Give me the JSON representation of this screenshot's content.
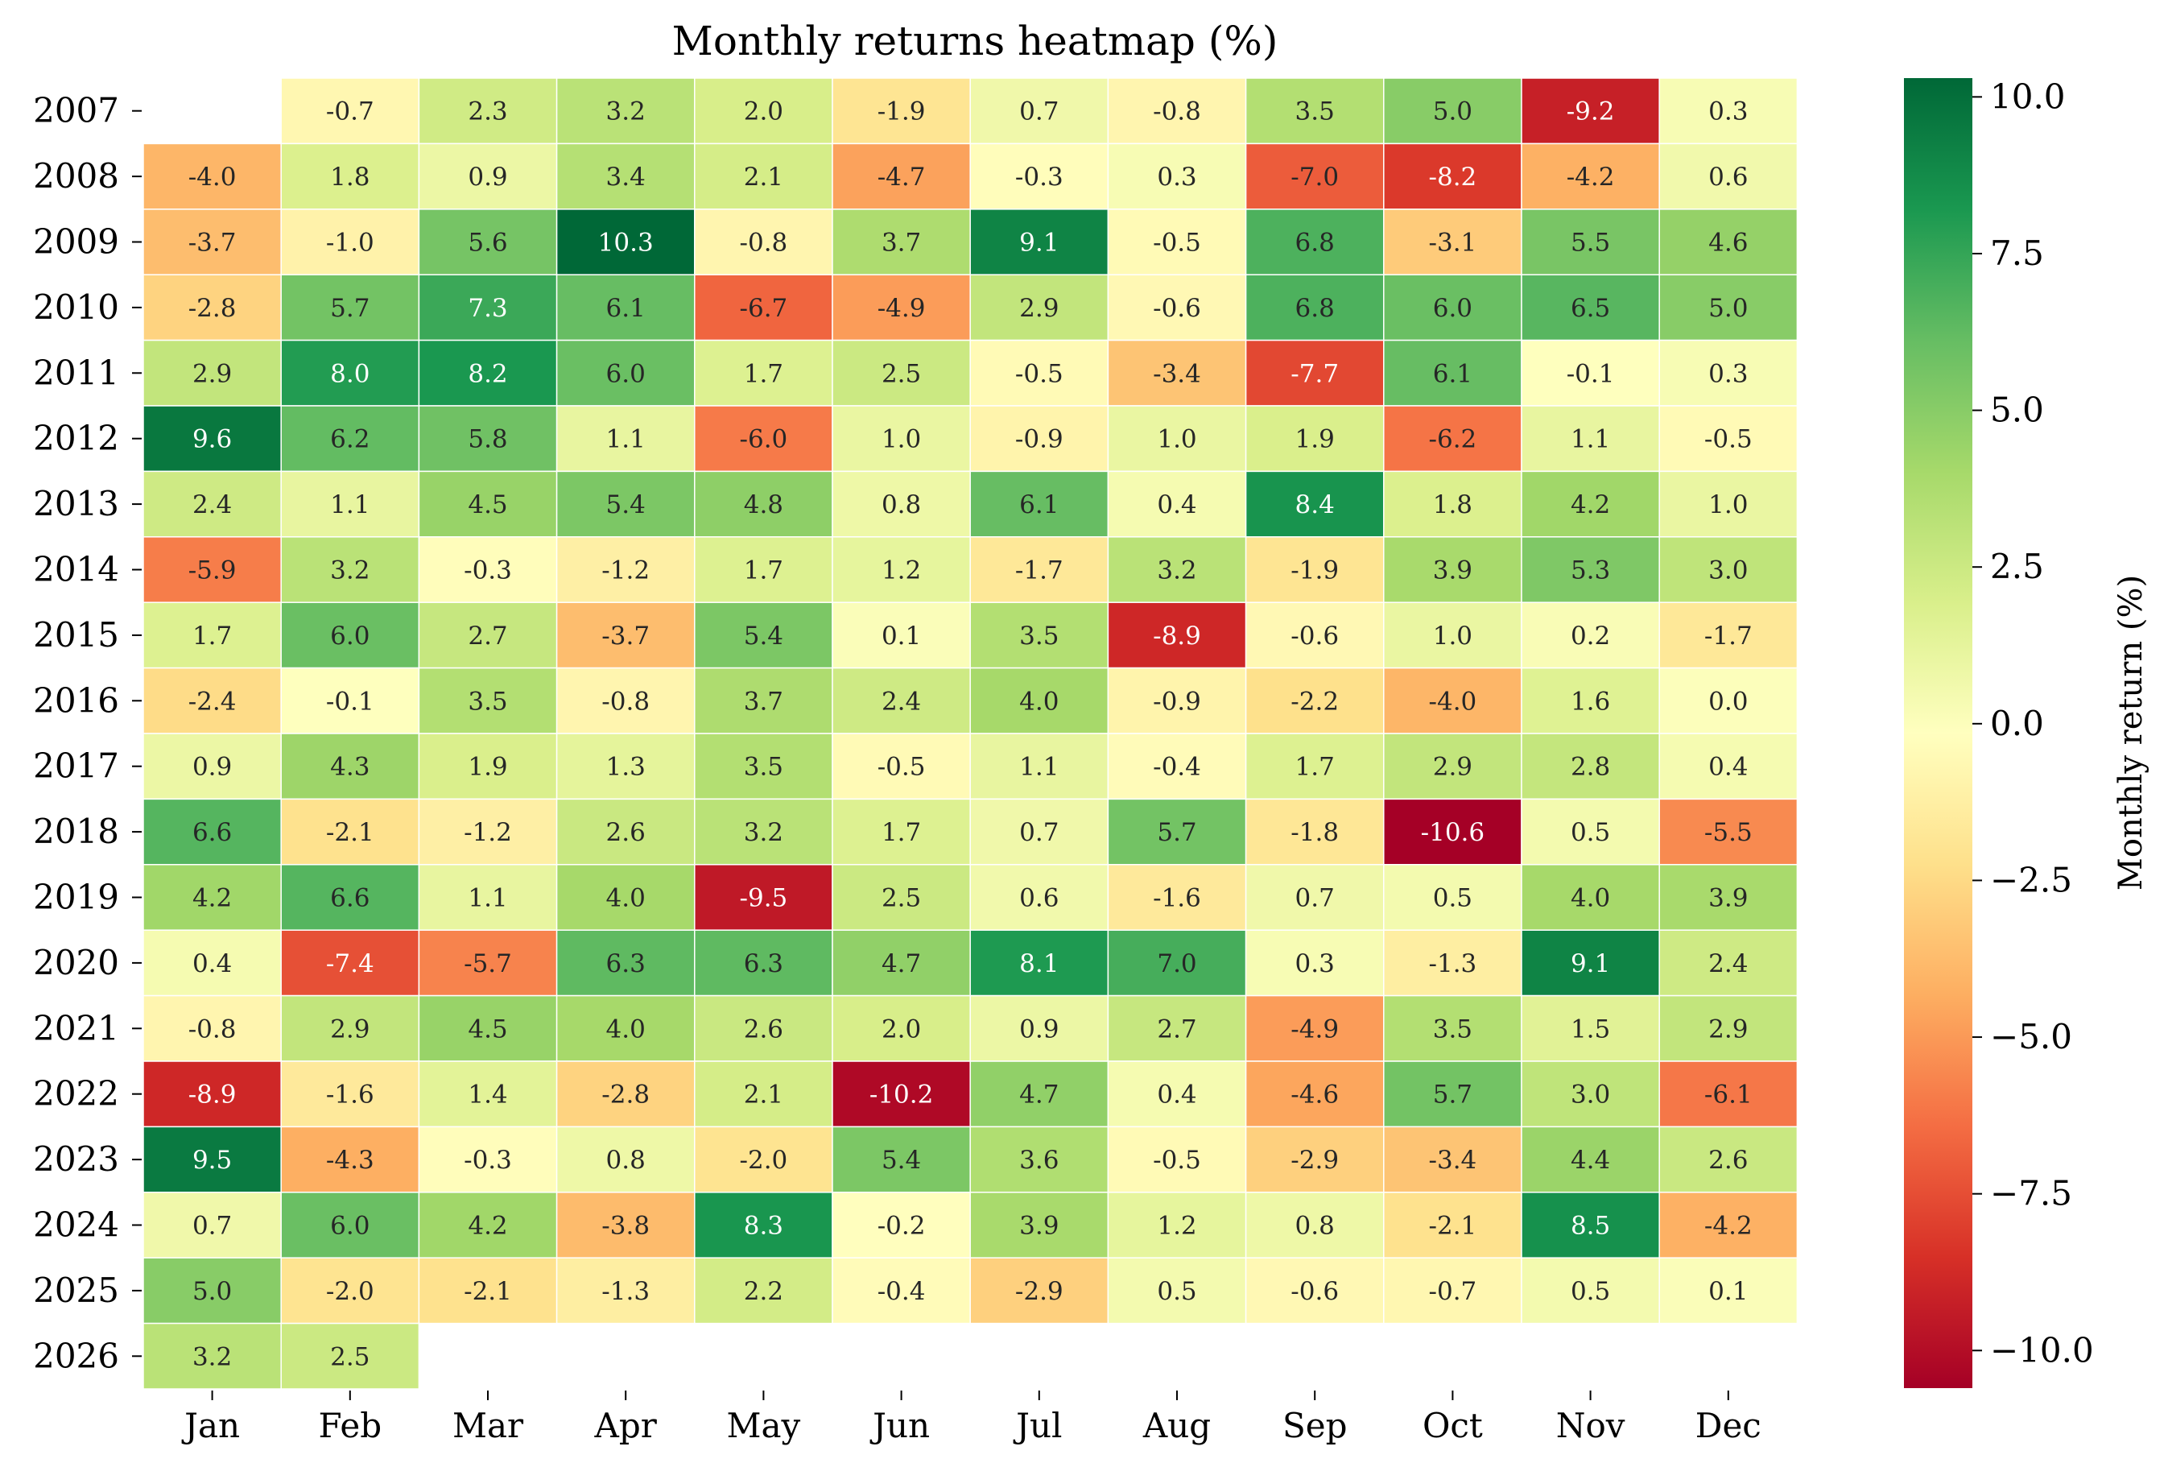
{
  "chart_data": {
    "type": "heatmap",
    "title": "Monthly returns heatmap (%)",
    "xlabel": "",
    "ylabel": "",
    "x_categories": [
      "Jan",
      "Feb",
      "Mar",
      "Apr",
      "May",
      "Jun",
      "Jul",
      "Aug",
      "Sep",
      "Oct",
      "Nov",
      "Dec"
    ],
    "y_categories": [
      "2007",
      "2008",
      "2009",
      "2010",
      "2011",
      "2012",
      "2013",
      "2014",
      "2015",
      "2016",
      "2017",
      "2018",
      "2019",
      "2020",
      "2021",
      "2022",
      "2023",
      "2024",
      "2025",
      "2026"
    ],
    "values": [
      [
        null,
        -0.7,
        2.3,
        3.2,
        2.0,
        -1.9,
        0.7,
        -0.8,
        3.5,
        5.0,
        -9.2,
        0.3
      ],
      [
        -4.0,
        1.8,
        0.9,
        3.4,
        2.1,
        -4.7,
        -0.3,
        0.3,
        -7.0,
        -8.2,
        -4.2,
        0.6
      ],
      [
        -3.7,
        -1.0,
        5.6,
        10.3,
        -0.8,
        3.7,
        9.1,
        -0.5,
        6.8,
        -3.1,
        5.5,
        4.6
      ],
      [
        -2.8,
        5.7,
        7.3,
        6.1,
        -6.7,
        -4.9,
        2.9,
        -0.6,
        6.8,
        6.0,
        6.5,
        5.0
      ],
      [
        2.9,
        8.0,
        8.2,
        6.0,
        1.7,
        2.5,
        -0.5,
        -3.4,
        -7.7,
        6.1,
        -0.1,
        0.3
      ],
      [
        9.6,
        6.2,
        5.8,
        1.1,
        -6.0,
        1.0,
        -0.9,
        1.0,
        1.9,
        -6.2,
        1.1,
        -0.5
      ],
      [
        2.4,
        1.1,
        4.5,
        5.4,
        4.8,
        0.8,
        6.1,
        0.4,
        8.4,
        1.8,
        4.2,
        1.0
      ],
      [
        -5.9,
        3.2,
        -0.3,
        -1.2,
        1.7,
        1.2,
        -1.7,
        3.2,
        -1.9,
        3.9,
        5.3,
        3.0
      ],
      [
        1.7,
        6.0,
        2.7,
        -3.7,
        5.4,
        0.1,
        3.5,
        -8.9,
        -0.6,
        1.0,
        0.2,
        -1.7
      ],
      [
        -2.4,
        -0.1,
        3.5,
        -0.8,
        3.7,
        2.4,
        4.0,
        -0.9,
        -2.2,
        -4.0,
        1.6,
        0.0
      ],
      [
        0.9,
        4.3,
        1.9,
        1.3,
        3.5,
        -0.5,
        1.1,
        -0.4,
        1.7,
        2.9,
        2.8,
        0.4
      ],
      [
        6.6,
        -2.1,
        -1.2,
        2.6,
        3.2,
        1.7,
        0.7,
        5.7,
        -1.8,
        -10.6,
        0.5,
        -5.5
      ],
      [
        4.2,
        6.6,
        1.1,
        4.0,
        -9.5,
        2.5,
        0.6,
        -1.6,
        0.7,
        0.5,
        4.0,
        3.9
      ],
      [
        0.4,
        -7.4,
        -5.7,
        6.3,
        6.3,
        4.7,
        8.1,
        7.0,
        0.3,
        -1.3,
        9.1,
        2.4
      ],
      [
        -0.8,
        2.9,
        4.5,
        4.0,
        2.6,
        2.0,
        0.9,
        2.7,
        -4.9,
        3.5,
        1.5,
        2.9
      ],
      [
        -8.9,
        -1.6,
        1.4,
        -2.8,
        2.1,
        -10.2,
        4.7,
        0.4,
        -4.6,
        5.7,
        3.0,
        -6.1
      ],
      [
        9.5,
        -4.3,
        -0.3,
        0.8,
        -2.0,
        5.4,
        3.6,
        -0.5,
        -2.9,
        -3.4,
        4.4,
        2.6
      ],
      [
        0.7,
        6.0,
        4.2,
        -3.8,
        8.3,
        -0.2,
        3.9,
        1.2,
        0.8,
        -2.1,
        8.5,
        -4.2
      ],
      [
        5.0,
        -2.0,
        -2.1,
        -1.3,
        2.2,
        -0.4,
        -2.9,
        0.5,
        -0.6,
        -0.7,
        0.5,
        0.1
      ],
      [
        3.2,
        2.5,
        null,
        null,
        null,
        null,
        null,
        null,
        null,
        null,
        null,
        null
      ]
    ],
    "colormap": "RdYlGn",
    "color_range": [
      -10.6,
      10.3
    ],
    "colorbar": {
      "label": "Monthly return (%)",
      "ticks": [
        -10.0,
        -7.5,
        -5.0,
        -2.5,
        0.0,
        2.5,
        5.0,
        7.5,
        10.0
      ],
      "tick_labels": [
        "−10.0",
        "−7.5",
        "−5.0",
        "−2.5",
        "0.0",
        "2.5",
        "5.0",
        "7.5",
        "10.0"
      ]
    },
    "annotated": true,
    "grid": false
  }
}
